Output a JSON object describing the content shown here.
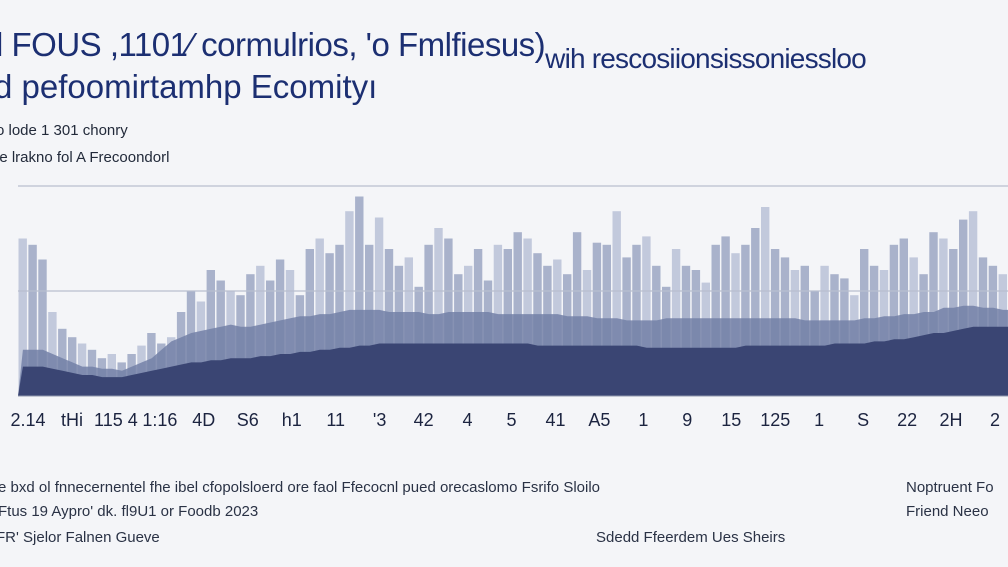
{
  "title": {
    "line1_main": "l FOUS ,1101⁄ cormulrios, 'o Fmlfiesus)",
    "line1_tail": "wih rescosiionsissoniessloo",
    "line2": "d pefoomirtamhp Ecomityı"
  },
  "subtitle": {
    "line1": "o lode 1 301 chonry",
    "line2": "le lrakno fol A Frecoondorl"
  },
  "footer": {
    "left1": "e bxd ol fnnecernentel fhe ibel cfopolsloerd ore faol Ffecocnl pued orecaslomo Fsrifo Sloilo",
    "left2": "Ftus 19 Aypro' dk. fl9U1 or Foodb 2023",
    "left3": "FR' Sjelor Falnen Gueve",
    "center": "Sdedd Ffeerdem Ues Sheirs",
    "right1": "Noptruent Fo",
    "right2": "Friend Neeo"
  },
  "colors": {
    "background": "#f4f5f8",
    "title": "#1c2f72",
    "bars": "#a9b2cb",
    "bars_light": "#c2c9dc",
    "band_mid": "#7380a7",
    "band_dark": "#3a4573",
    "gridline": "#b9bfcf",
    "axis_text": "#1c2440"
  },
  "chart_data": {
    "type": "area",
    "title": "",
    "xlabel": "",
    "ylabel": "",
    "ylim": [
      0,
      100
    ],
    "grid": true,
    "x_tick_labels": [
      "2.14",
      "tHi",
      "115 4",
      "1:16",
      "4D",
      "S6",
      "h1",
      "11",
      "'3",
      "42",
      "4",
      "5",
      "41",
      "A5",
      "1",
      "9",
      "15",
      "125",
      "1",
      "S",
      "22",
      "2H",
      "2"
    ],
    "x": [
      0,
      1,
      2,
      3,
      4,
      5,
      6,
      7,
      8,
      9,
      10,
      11,
      12,
      13,
      14,
      15,
      16,
      17,
      18,
      19,
      20,
      21,
      22,
      23,
      24,
      25,
      26,
      27,
      28,
      29,
      30,
      31,
      32,
      33,
      34,
      35,
      36,
      37,
      38,
      39,
      40,
      41,
      42,
      43,
      44,
      45,
      46,
      47,
      48,
      49,
      50,
      51,
      52,
      53,
      54,
      55,
      56,
      57,
      58,
      59,
      60,
      61,
      62,
      63,
      64,
      65,
      66,
      67,
      68,
      69,
      70,
      71,
      72,
      73,
      74,
      75,
      76,
      77,
      78,
      79,
      80,
      81,
      82,
      83,
      84,
      85,
      86,
      87,
      88,
      89,
      90,
      91,
      92,
      93,
      94,
      95,
      96,
      97,
      98,
      99
    ],
    "series": [
      {
        "values": [
          75,
          72,
          65,
          40,
          32,
          28,
          25,
          22,
          18,
          20,
          16,
          20,
          24,
          30,
          25,
          28,
          40,
          50,
          45,
          60,
          55,
          50,
          48,
          58,
          62,
          55,
          65,
          60,
          48,
          70,
          75,
          68,
          72,
          88,
          95,
          72,
          85,
          70,
          62,
          66,
          52,
          72,
          80,
          75,
          58,
          62,
          70,
          55,
          72,
          70,
          78,
          75,
          68,
          62,
          65,
          58,
          78,
          60,
          73,
          72,
          88,
          66,
          72,
          76,
          62,
          52,
          70,
          62,
          60,
          54,
          72,
          76,
          68,
          72,
          80,
          90,
          70,
          66,
          60,
          62,
          50,
          62,
          58,
          56,
          48,
          70,
          62,
          60,
          72,
          75,
          66,
          58,
          78,
          75,
          70,
          84,
          88,
          66,
          62,
          58
        ]
      },
      {
        "values": [
          22,
          22,
          22,
          20,
          18,
          16,
          14,
          14,
          13,
          13,
          12,
          14,
          16,
          18,
          22,
          26,
          28,
          30,
          31,
          32,
          33,
          34,
          33,
          33,
          34,
          35,
          36,
          37,
          38,
          38,
          39,
          39,
          40,
          41,
          41,
          41,
          41,
          40,
          40,
          40,
          40,
          39,
          39,
          40,
          40,
          40,
          40,
          40,
          39,
          39,
          39,
          39,
          39,
          39,
          39,
          38,
          38,
          38,
          37,
          37,
          37,
          36,
          36,
          36,
          36,
          37,
          37,
          37,
          37,
          37,
          37,
          37,
          37,
          37,
          37,
          37,
          37,
          37,
          37,
          36,
          36,
          36,
          36,
          36,
          36,
          37,
          37,
          38,
          38,
          39,
          39,
          40,
          40,
          42,
          42,
          43,
          43,
          42,
          42,
          41
        ]
      },
      {
        "values": [
          14,
          14,
          14,
          13,
          12,
          11,
          10,
          10,
          9,
          9,
          9,
          10,
          11,
          12,
          13,
          14,
          15,
          16,
          16,
          17,
          17,
          18,
          18,
          18,
          19,
          19,
          20,
          20,
          21,
          21,
          22,
          22,
          23,
          23,
          24,
          24,
          25,
          25,
          25,
          25,
          25,
          25,
          25,
          25,
          25,
          25,
          25,
          25,
          25,
          25,
          25,
          25,
          24,
          24,
          24,
          24,
          24,
          24,
          24,
          24,
          24,
          24,
          24,
          23,
          23,
          23,
          23,
          23,
          23,
          23,
          23,
          23,
          23,
          24,
          24,
          24,
          24,
          24,
          24,
          24,
          24,
          24,
          25,
          25,
          25,
          25,
          26,
          26,
          27,
          27,
          28,
          29,
          30,
          30,
          31,
          32,
          33,
          33,
          33,
          33
        ]
      }
    ]
  }
}
